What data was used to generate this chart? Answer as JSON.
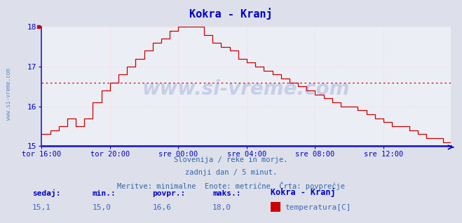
{
  "title": "Kokra - Kranj",
  "title_color": "#0000cc",
  "bg_color": "#dde0ea",
  "plot_bg_color": "#eceef5",
  "grid_color_v": "#ffcccc",
  "grid_color_h": "#ffcccc",
  "axis_color": "#0000cc",
  "line_color": "#cc0000",
  "avg_line_color": "#cc0000",
  "avg_value": 16.6,
  "ymin": 15.0,
  "ymax": 18.0,
  "yticks": [
    15,
    16,
    17,
    18
  ],
  "watermark": "www.si-vreme.com",
  "watermark_color": "#1a3a8a",
  "subtitle_lines": [
    "Slovenija / reke in morje.",
    "zadnji dan / 5 minut.",
    "Meritve: minimalne  Enote: metrične  Črta: povprečje"
  ],
  "subtitle_color": "#3366aa",
  "footer_labels": [
    "sedaj:",
    "min.:",
    "povpr.:",
    "maks.:"
  ],
  "footer_values": [
    "15,1",
    "15,0",
    "16,6",
    "18,0"
  ],
  "footer_series_name": "Kokra - Kranj",
  "footer_legend_label": "temperatura[C]",
  "footer_label_color": "#0000cc",
  "footer_value_color": "#4466bb",
  "footer_legend_color": "#cc0000",
  "xtick_labels": [
    "tor 16:00",
    "tor 20:00",
    "sre 00:00",
    "sre 04:00",
    "sre 08:00",
    "sre 12:00"
  ],
  "xtick_positions": [
    0,
    48,
    96,
    144,
    192,
    240
  ],
  "total_points": 288,
  "side_label": "www.si-vreme.com",
  "side_label_color": "#3366aa"
}
